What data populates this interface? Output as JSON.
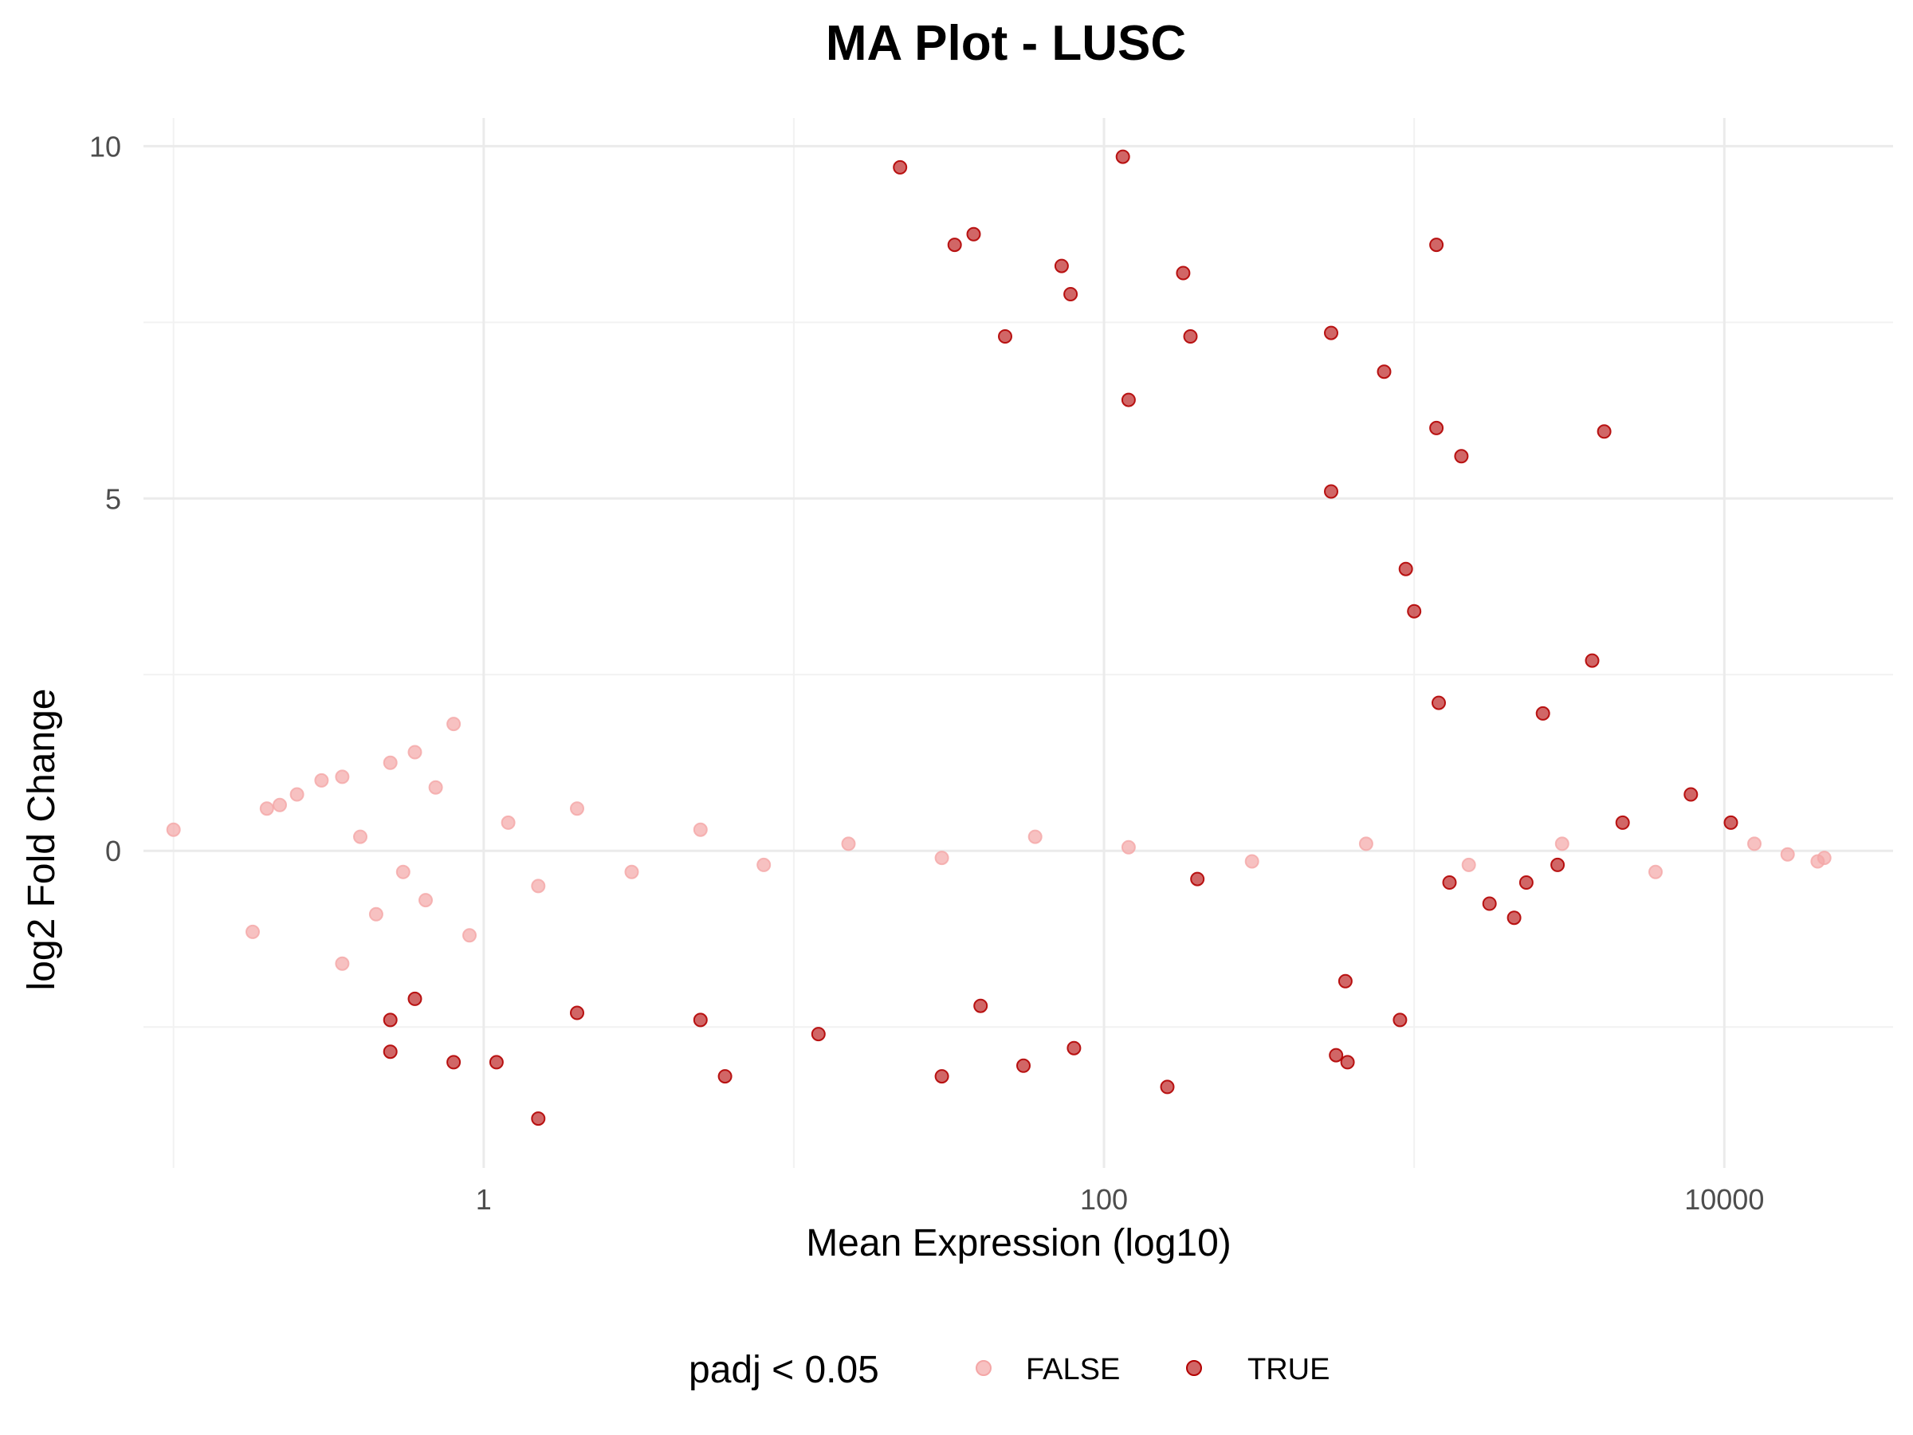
{
  "chart_data": {
    "type": "scatter",
    "title": "MA Plot - LUSC",
    "xlabel": "Mean Expression (log10)",
    "ylabel": "log2 Fold Change",
    "x_scale": "log10",
    "xlim": [
      0.08,
      35000
    ],
    "ylim": [
      -4.5,
      10.4
    ],
    "x_ticks": [
      1,
      100,
      10000
    ],
    "x_tick_labels": [
      "1",
      "100",
      "10000"
    ],
    "y_ticks": [
      0,
      5,
      10
    ],
    "y_tick_labels": [
      "0",
      "5",
      "10"
    ],
    "grid": true,
    "legend": {
      "title": "padj < 0.05",
      "position": "bottom",
      "entries": [
        "FALSE",
        "TRUE"
      ]
    },
    "colors": {
      "FALSE": "#f4a6a6",
      "TRUE": "#b30000"
    },
    "series": [
      {
        "name": "FALSE",
        "color": "#f4a6a6",
        "points": [
          [
            0.1,
            0.3
          ],
          [
            0.2,
            0.6
          ],
          [
            0.22,
            0.65
          ],
          [
            0.25,
            0.8
          ],
          [
            0.3,
            1.0
          ],
          [
            0.35,
            1.05
          ],
          [
            0.18,
            -1.15
          ],
          [
            0.35,
            -1.6
          ],
          [
            0.45,
            -0.9
          ],
          [
            0.5,
            1.25
          ],
          [
            0.6,
            1.4
          ],
          [
            0.55,
            -0.3
          ],
          [
            0.7,
            0.9
          ],
          [
            0.8,
            1.8
          ],
          [
            0.4,
            0.2
          ],
          [
            0.65,
            -0.7
          ],
          [
            0.9,
            -1.2
          ],
          [
            1.2,
            0.4
          ],
          [
            1.5,
            -0.5
          ],
          [
            2.0,
            0.6
          ],
          [
            3.0,
            -0.3
          ],
          [
            5.0,
            0.3
          ],
          [
            8.0,
            -0.2
          ],
          [
            15,
            0.1
          ],
          [
            30,
            -0.1
          ],
          [
            60,
            0.2
          ],
          [
            120,
            0.05
          ],
          [
            300,
            -0.15
          ],
          [
            700,
            0.1
          ],
          [
            1500,
            -0.2
          ],
          [
            3000,
            0.1
          ],
          [
            6000,
            -0.3
          ],
          [
            16000,
            -0.05
          ],
          [
            12500,
            0.1
          ],
          [
            20000,
            -0.15
          ],
          [
            21000,
            -0.1
          ]
        ]
      },
      {
        "name": "TRUE",
        "color": "#b30000",
        "points": [
          [
            22,
            9.7
          ],
          [
            115,
            9.85
          ],
          [
            38,
            8.75
          ],
          [
            33,
            8.6
          ],
          [
            73,
            8.3
          ],
          [
            180,
            8.2
          ],
          [
            1180,
            8.6
          ],
          [
            78,
            7.9
          ],
          [
            48,
            7.3
          ],
          [
            190,
            7.3
          ],
          [
            540,
            7.35
          ],
          [
            120,
            6.4
          ],
          [
            800,
            6.8
          ],
          [
            1180,
            6.0
          ],
          [
            4100,
            5.95
          ],
          [
            1420,
            5.6
          ],
          [
            540,
            5.1
          ],
          [
            940,
            4.0
          ],
          [
            3750,
            2.7
          ],
          [
            2600,
            1.95
          ],
          [
            7800,
            0.8
          ],
          [
            10500,
            0.4
          ],
          [
            4700,
            0.4
          ],
          [
            600,
            -1.85
          ],
          [
            900,
            -2.4
          ],
          [
            560,
            -2.9
          ],
          [
            610,
            -3.0
          ],
          [
            160,
            -3.35
          ],
          [
            55,
            -3.05
          ],
          [
            30,
            -3.2
          ],
          [
            6,
            -3.2
          ],
          [
            1.5,
            -3.8
          ],
          [
            0.8,
            -3.0
          ],
          [
            0.5,
            -2.85
          ],
          [
            1.1,
            -3.0
          ],
          [
            1200,
            2.1
          ],
          [
            1000,
            3.4
          ],
          [
            1300,
            -0.45
          ],
          [
            2100,
            -0.95
          ],
          [
            1750,
            -0.75
          ],
          [
            2300,
            -0.45
          ],
          [
            2900,
            -0.2
          ],
          [
            200,
            -0.4
          ],
          [
            80,
            -2.8
          ],
          [
            40,
            -2.2
          ],
          [
            12,
            -2.6
          ],
          [
            5,
            -2.4
          ],
          [
            2,
            -2.3
          ],
          [
            0.6,
            -2.1
          ],
          [
            0.5,
            -2.4
          ]
        ]
      }
    ]
  }
}
